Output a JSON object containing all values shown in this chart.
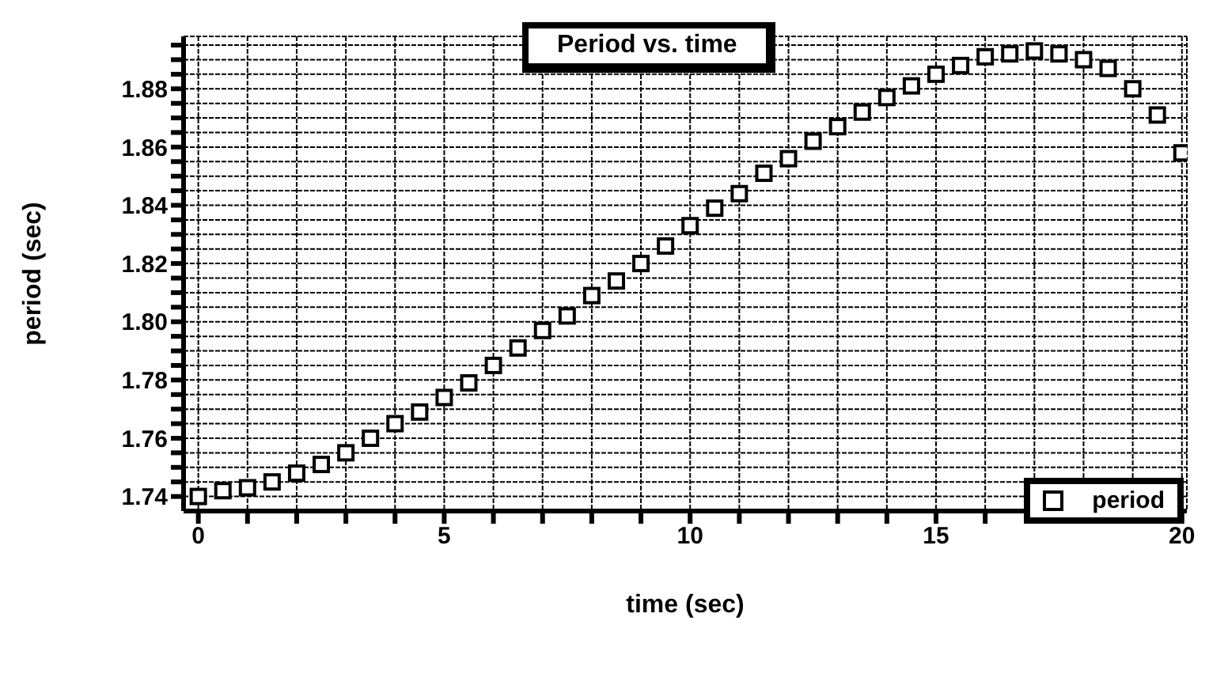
{
  "chart_data": {
    "type": "scatter",
    "title": "Period vs. time",
    "xlabel": "time  (sec)",
    "ylabel": "period  (sec)",
    "x": [
      0,
      0.5,
      1,
      1.5,
      2,
      2.5,
      3,
      3.5,
      4,
      4.5,
      5,
      5.5,
      6,
      6.5,
      7,
      7.5,
      8,
      8.5,
      9,
      9.5,
      10,
      10.5,
      11,
      11.5,
      12,
      12.5,
      13,
      13.5,
      14,
      14.5,
      15,
      15.5,
      16,
      16.5,
      17,
      17.5,
      18,
      18.5,
      19,
      19.5,
      20
    ],
    "series": [
      {
        "name": "period",
        "color": "#000000",
        "values": [
          1.74,
          1.742,
          1.743,
          1.745,
          1.748,
          1.751,
          1.755,
          1.76,
          1.765,
          1.769,
          1.774,
          1.779,
          1.785,
          1.791,
          1.797,
          1.802,
          1.809,
          1.814,
          1.82,
          1.826,
          1.833,
          1.839,
          1.844,
          1.851,
          1.856,
          1.862,
          1.867,
          1.872,
          1.877,
          1.881,
          1.885,
          1.888,
          1.891,
          1.892,
          1.893,
          1.892,
          1.89,
          1.887,
          1.88,
          1.871,
          1.858
        ]
      }
    ],
    "marker": "square",
    "grid": true,
    "legend": "bottom right",
    "xlim": [
      -0.3,
      20.1
    ],
    "xticks": [
      0,
      {
        "value": 1,
        "label": null
      },
      {
        "value": 2,
        "label": null
      },
      {
        "value": 3,
        "label": null
      },
      {
        "value": 4,
        "label": null
      },
      5,
      {
        "value": 6,
        "label": null
      },
      {
        "value": 7,
        "label": null
      },
      {
        "value": 8,
        "label": null
      },
      {
        "value": 9,
        "label": null
      },
      10,
      {
        "value": 11,
        "label": null
      },
      {
        "value": 12,
        "label": null
      },
      {
        "value": 13,
        "label": null
      },
      {
        "value": 14,
        "label": null
      },
      15,
      {
        "value": 16,
        "label": null
      },
      {
        "value": 17,
        "label": null
      },
      {
        "value": 18,
        "label": null
      },
      {
        "value": 19,
        "label": null
      },
      20
    ],
    "ylim": [
      1.735,
      1.898
    ],
    "yticks": [
      {
        "value": 1.74,
        "label": "1.74"
      },
      {
        "value": 1.745,
        "label": null
      },
      {
        "value": 1.75,
        "label": null
      },
      {
        "value": 1.755,
        "label": null
      },
      {
        "value": 1.76,
        "label": "1.76"
      },
      {
        "value": 1.765,
        "label": null
      },
      {
        "value": 1.77,
        "label": null
      },
      {
        "value": 1.775,
        "label": null
      },
      {
        "value": 1.78,
        "label": "1.78"
      },
      {
        "value": 1.785,
        "label": null
      },
      {
        "value": 1.79,
        "label": null
      },
      {
        "value": 1.795,
        "label": null
      },
      {
        "value": 1.8,
        "label": "1.80"
      },
      {
        "value": 1.805,
        "label": null
      },
      {
        "value": 1.81,
        "label": null
      },
      {
        "value": 1.815,
        "label": null
      },
      {
        "value": 1.82,
        "label": "1.82"
      },
      {
        "value": 1.825,
        "label": null
      },
      {
        "value": 1.83,
        "label": null
      },
      {
        "value": 1.835,
        "label": null
      },
      {
        "value": 1.84,
        "label": "1.84"
      },
      {
        "value": 1.845,
        "label": null
      },
      {
        "value": 1.85,
        "label": null
      },
      {
        "value": 1.855,
        "label": null
      },
      {
        "value": 1.86,
        "label": "1.86"
      },
      {
        "value": 1.865,
        "label": null
      },
      {
        "value": 1.87,
        "label": null
      },
      {
        "value": 1.875,
        "label": null
      },
      {
        "value": 1.88,
        "label": "1.88"
      },
      {
        "value": 1.885,
        "label": null
      },
      {
        "value": 1.89,
        "label": null
      },
      {
        "value": 1.895,
        "label": null
      }
    ]
  }
}
